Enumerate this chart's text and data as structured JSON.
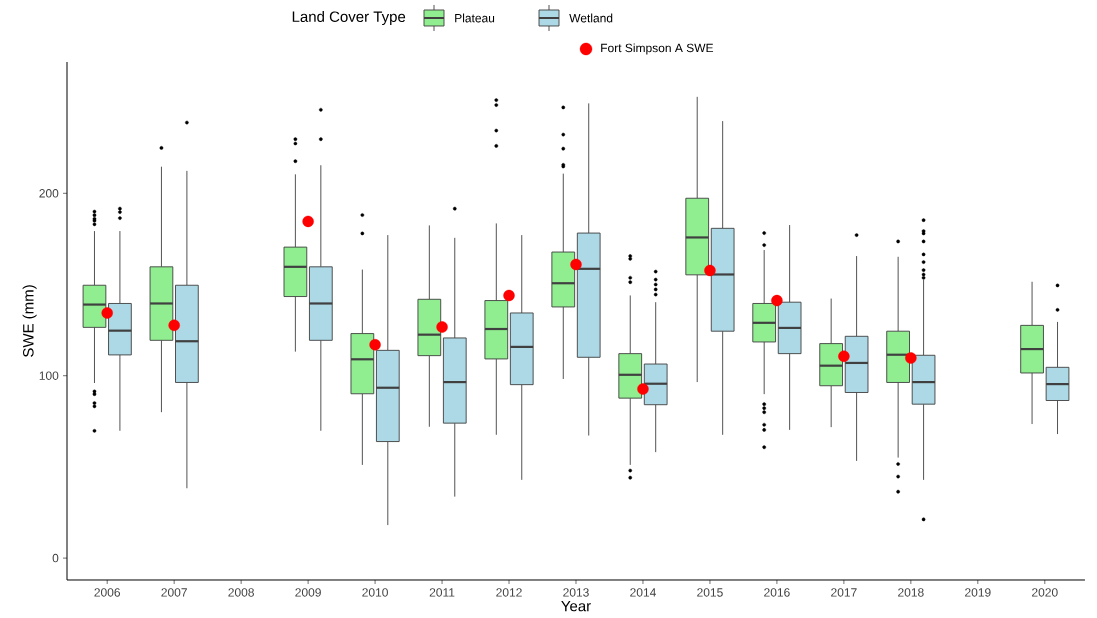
{
  "chart_data": {
    "type": "box",
    "xlabel": "Year",
    "ylabel": "SWE (mm)",
    "legend_title": "Land Cover Type",
    "legend": "top",
    "categories": [
      "2006",
      "2007",
      "2008",
      "2009",
      "2010",
      "2011",
      "2012",
      "2013",
      "2014",
      "2015",
      "2016",
      "2017",
      "2018",
      "2019",
      "2020"
    ],
    "ylim": [
      -12,
      272
    ],
    "yticks": [
      0,
      100,
      200
    ],
    "series": [
      {
        "name": "Plateau",
        "color": "#90ee90",
        "boxes": [
          {
            "low": 96,
            "q1": 126.5,
            "median": 139,
            "q3": 149.6,
            "high": 179.3,
            "outliers": [
              190,
              188,
              186,
              185,
              183,
              91.4,
              89.9,
              85,
              83.2,
              69.8
            ]
          },
          {
            "low": 80,
            "q1": 119.4,
            "median": 139.6,
            "q3": 159.7,
            "high": 214.6,
            "outliers": [
              224.9
            ]
          },
          null,
          {
            "low": 113.2,
            "q1": 143.4,
            "median": 159.7,
            "q3": 170.5,
            "high": 210.4,
            "outliers": [
              229.7,
              227.3,
              217.6
            ]
          },
          {
            "low": 51.1,
            "q1": 90.1,
            "median": 109,
            "q3": 123.1,
            "high": 158.2,
            "outliers": [
              188.1,
              178
            ]
          },
          {
            "low": 72,
            "q1": 111,
            "median": 122.5,
            "q3": 141.9,
            "high": 182.4
          },
          {
            "low": 67.6,
            "q1": 109.2,
            "median": 125.6,
            "q3": 141.2,
            "high": 183.5,
            "outliers": [
              251.1,
              248.4,
              234.4,
              226
            ]
          },
          {
            "low": 98.2,
            "q1": 137.7,
            "median": 150.7,
            "q3": 167.8,
            "high": 210.8,
            "outliers": [
              247.1,
              232.2,
              224.5,
              215.6,
              214.7
            ]
          },
          {
            "low": 51.1,
            "q1": 87.7,
            "median": 100.5,
            "q3": 112.1,
            "high": 144,
            "outliers": [
              165.6,
              164.1,
              153.7,
              151.3,
              48,
              44.1
            ]
          },
          {
            "low": 96.5,
            "q1": 155.3,
            "median": 175.8,
            "q3": 197.3,
            "high": 252.9
          },
          {
            "low": 89.9,
            "q1": 118.5,
            "median": 129,
            "q3": 139.6,
            "high": 168.9,
            "outliers": [
              178.2,
              171.6,
              84.4,
              82.2,
              80,
              73.1,
              70.3,
              60.8
            ]
          },
          {
            "low": 71.8,
            "q1": 94.5,
            "median": 105.5,
            "q3": 117.6,
            "high": 142.3
          },
          {
            "low": 55.1,
            "q1": 96.3,
            "median": 111.5,
            "q3": 124.4,
            "high": 165.2,
            "outliers": [
              173.6,
              51.6,
              44.7,
              36.4
            ]
          },
          null,
          {
            "low": 73.5,
            "q1": 101.5,
            "median": 114.6,
            "q3": 127.6,
            "high": 151.5
          }
        ]
      },
      {
        "name": "Wetland",
        "color": "#add8e6",
        "boxes": [
          {
            "low": 69.8,
            "q1": 111.4,
            "median": 124.7,
            "q3": 139.6,
            "high": 179.3,
            "outliers": [
              191.6,
              189.7,
              186.4
            ]
          },
          {
            "low": 38.3,
            "q1": 96.3,
            "median": 118.9,
            "q3": 149.6,
            "high": 212.3,
            "outliers": [
              238.8
            ]
          },
          null,
          {
            "low": 69.8,
            "q1": 119.4,
            "median": 139.6,
            "q3": 159.7,
            "high": 215.4,
            "outliers": [
              245.8,
              229.7
            ]
          },
          {
            "low": 18.1,
            "q1": 63.9,
            "median": 93.4,
            "q3": 113.9,
            "high": 177.1
          },
          {
            "low": 33.7,
            "q1": 74,
            "median": 96.5,
            "q3": 120.7,
            "high": 175.6,
            "outliers": [
              191.6
            ]
          },
          {
            "low": 42.9,
            "q1": 95.1,
            "median": 115.8,
            "q3": 134.4,
            "high": 177.1
          },
          {
            "low": 67.2,
            "q1": 110.1,
            "median": 158.6,
            "q3": 178.2,
            "high": 249.3
          },
          {
            "low": 58.1,
            "q1": 84.1,
            "median": 95.6,
            "q3": 106.4,
            "high": 140.3,
            "outliers": [
              157.1,
              152.7,
              150,
              147.3,
              144.5
            ]
          },
          {
            "low": 67.6,
            "q1": 124.4,
            "median": 155.5,
            "q3": 180.8,
            "high": 239.6
          },
          {
            "low": 70.3,
            "q1": 112.1,
            "median": 126.2,
            "q3": 140.3,
            "high": 182.6
          },
          {
            "low": 53.3,
            "q1": 90.8,
            "median": 107,
            "q3": 121.6,
            "high": 165.6,
            "outliers": [
              177.1
            ]
          },
          {
            "low": 42.9,
            "q1": 84.4,
            "median": 96.5,
            "q3": 111.2,
            "high": 152.7,
            "outliers": [
              185.3,
              179.3,
              178,
              173.6,
              166.5,
              162.3,
              157.9,
              155.5,
              153.7,
              21.2
            ]
          },
          null,
          {
            "low": 68,
            "q1": 86.4,
            "median": 95.4,
            "q3": 104.6,
            "high": 129.5,
            "outliers": [
              149.5,
              136.1
            ]
          }
        ]
      },
      {
        "name": "Fort Simpson A SWE",
        "type": "scatter",
        "color": "#ff0000",
        "marker": "circle",
        "values": [
          134.4,
          127.6,
          null,
          184.6,
          117,
          126.7,
          144,
          161,
          92.7,
          157.7,
          141.2,
          110.6,
          109.7,
          null,
          null
        ]
      }
    ]
  }
}
